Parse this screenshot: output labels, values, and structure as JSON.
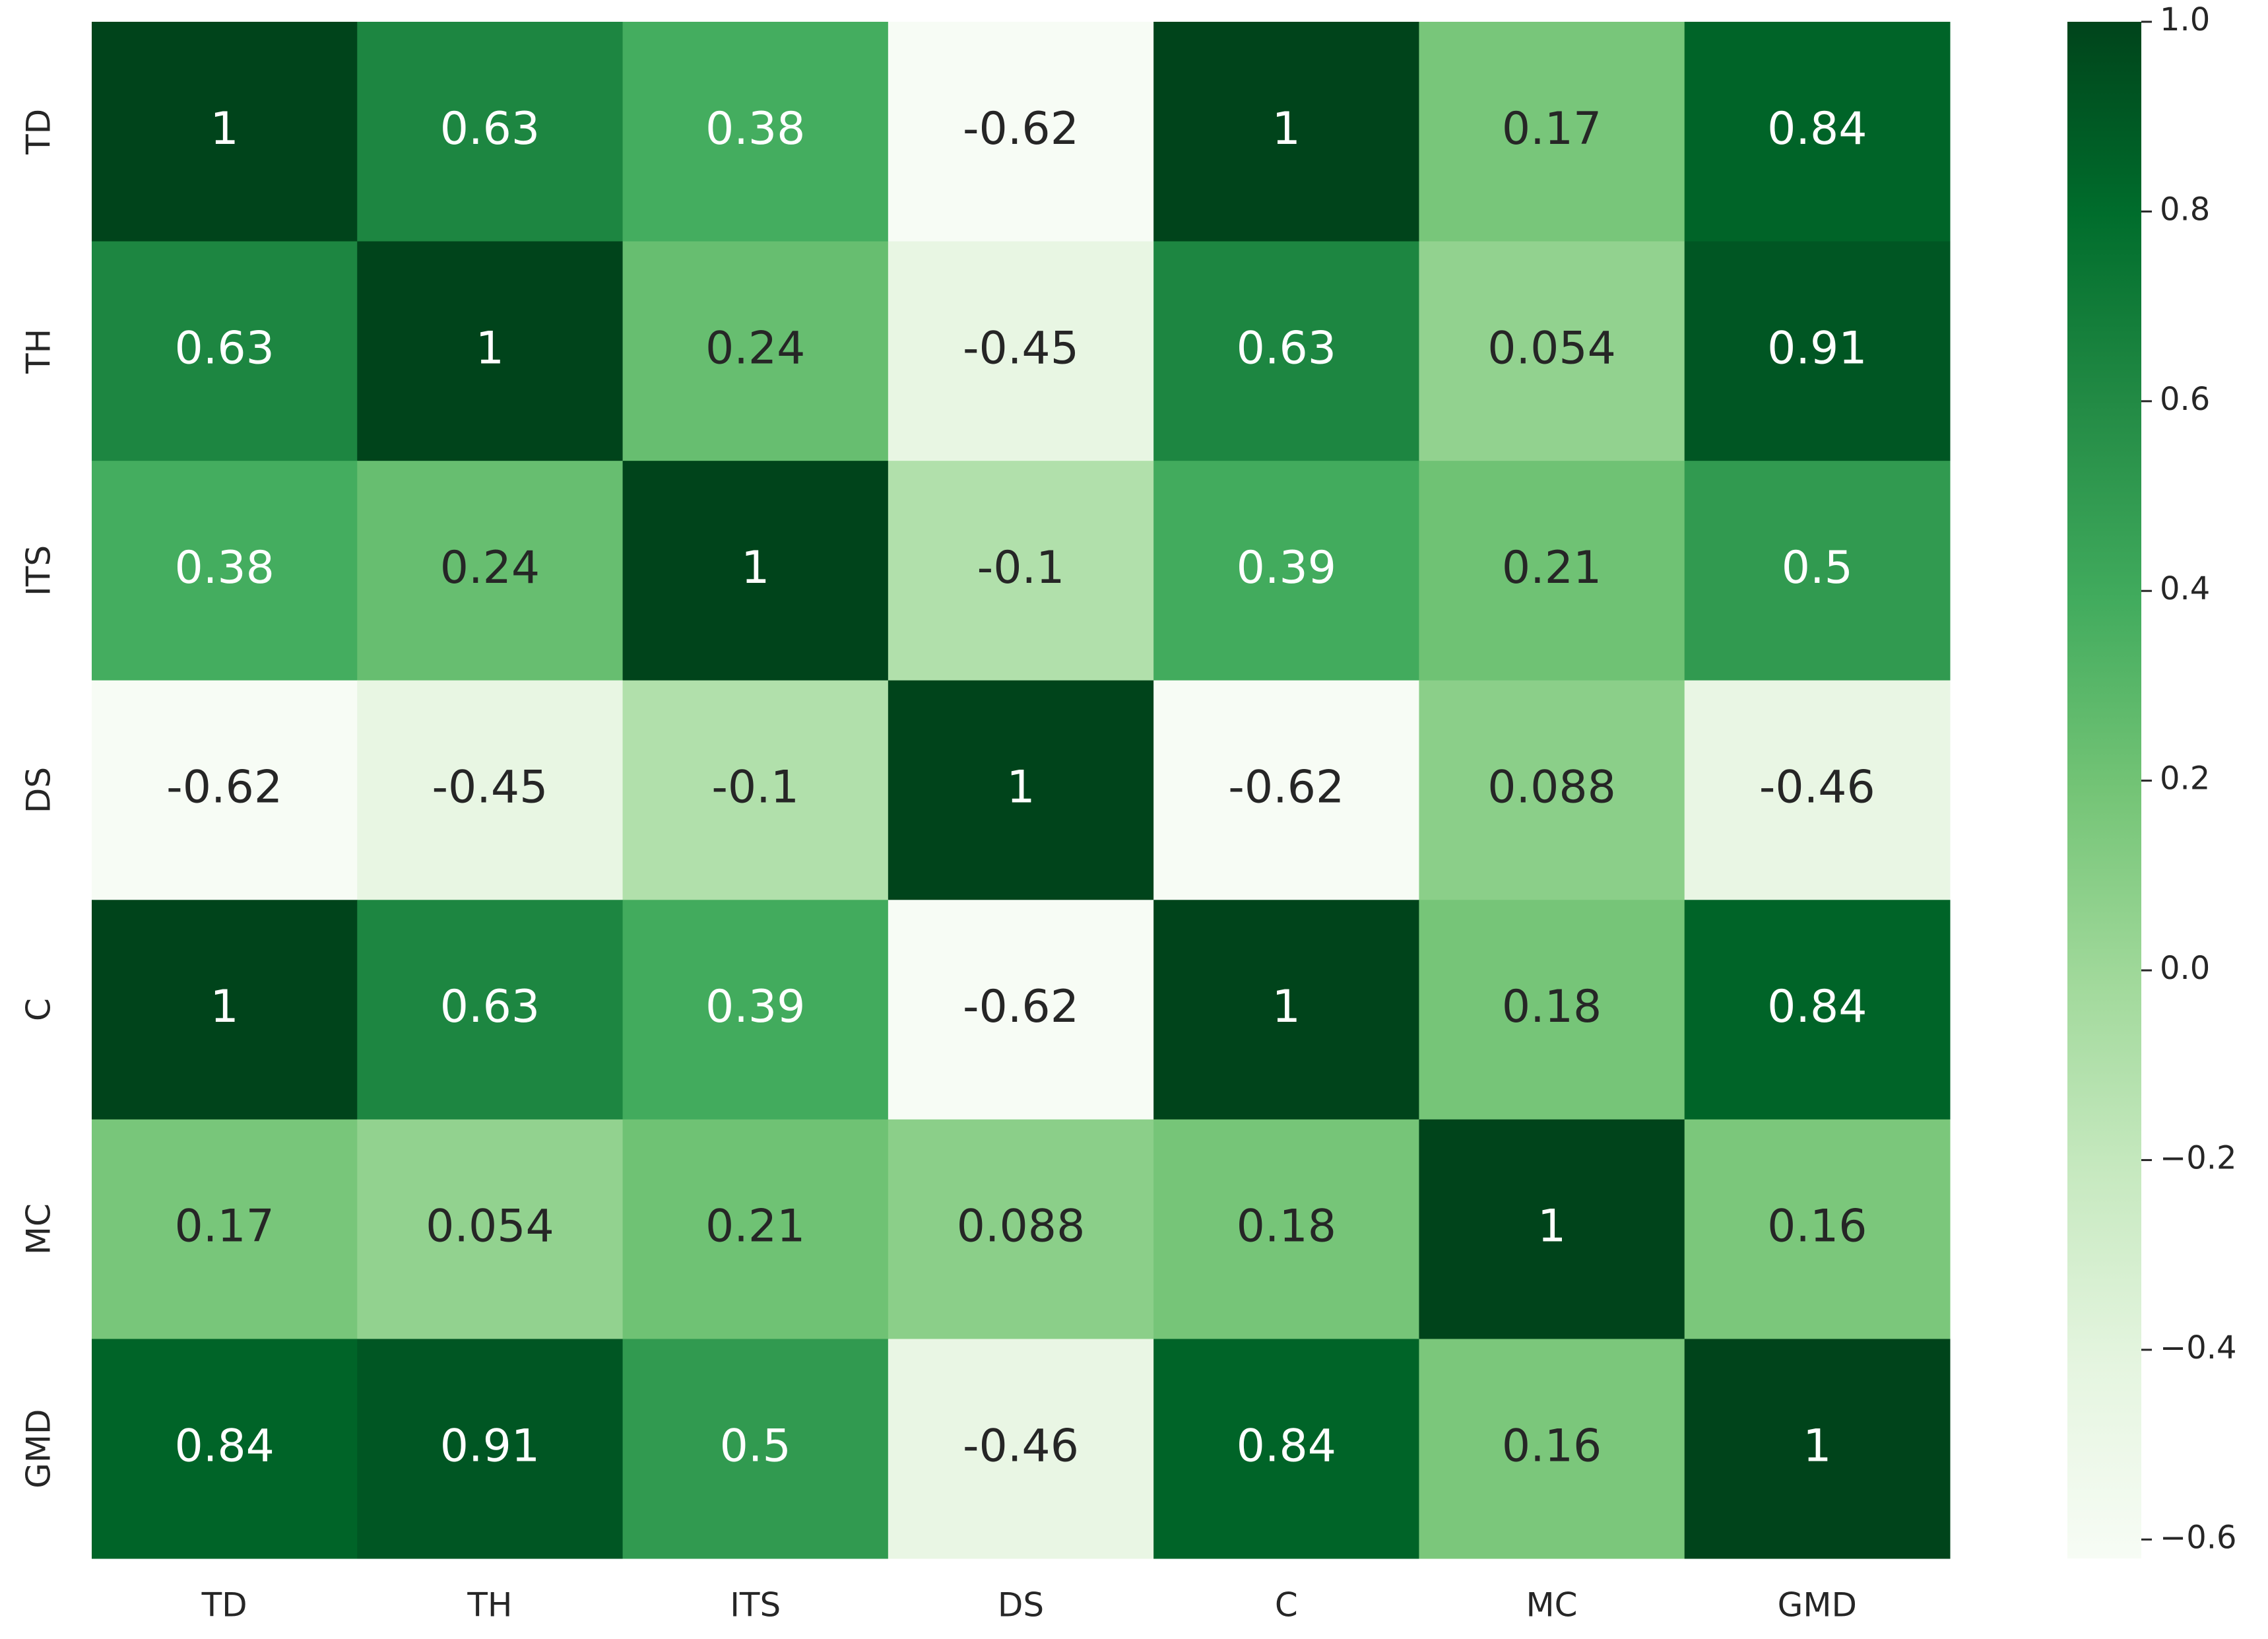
{
  "chart_data": {
    "type": "heatmap",
    "x_categories": [
      "TD",
      "TH",
      "ITS",
      "DS",
      "C",
      "MC",
      "GMD"
    ],
    "y_categories": [
      "TD",
      "TH",
      "ITS",
      "DS",
      "C",
      "MC",
      "GMD"
    ],
    "values": [
      [
        1,
        0.63,
        0.38,
        -0.62,
        1,
        0.17,
        0.84
      ],
      [
        0.63,
        1,
        0.24,
        -0.45,
        0.63,
        0.054,
        0.91
      ],
      [
        0.38,
        0.24,
        1,
        -0.1,
        0.39,
        0.21,
        0.5
      ],
      [
        -0.62,
        -0.45,
        -0.1,
        1,
        -0.62,
        0.088,
        -0.46
      ],
      [
        1,
        0.63,
        0.39,
        -0.62,
        1,
        0.18,
        0.84
      ],
      [
        0.17,
        0.054,
        0.21,
        0.088,
        0.18,
        1,
        0.16
      ],
      [
        0.84,
        0.91,
        0.5,
        -0.46,
        0.84,
        0.16,
        1
      ]
    ],
    "colormap": [
      "#f7fcf5",
      "#e5f5e0",
      "#c7e9c0",
      "#a1d99b",
      "#74c476",
      "#41ab5d",
      "#238b45",
      "#006d2c",
      "#00441b"
    ],
    "clim": [
      -0.62,
      1
    ],
    "cbar_ticks": [
      {
        "value": 1,
        "label": "1.0"
      },
      0.8,
      0.6,
      0.4,
      0.2,
      {
        "value": 0,
        "label": "0.0"
      },
      {
        "value": -0.2,
        "label": "−0.2"
      },
      {
        "value": -0.4,
        "label": "−0.4"
      },
      {
        "value": -0.6,
        "label": "−0.6"
      }
    ]
  }
}
